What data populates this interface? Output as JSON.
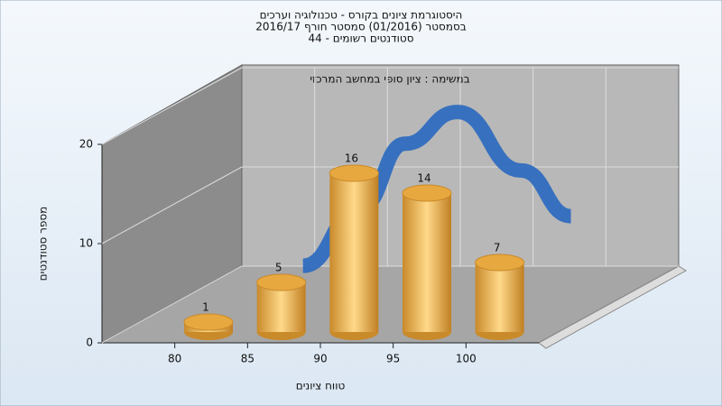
{
  "chart_data": {
    "type": "histogram",
    "title": [
      "היסטוגרמת ציונים בקורס - טכנולוגיה וערכים",
      "בסמסטר  (01/2016)  סמסטר חורף 2016/17",
      "סטודנטים רשומים - 44"
    ],
    "annotation": "במשימה : ציון סופי במחשב המרכזי",
    "xlabel": "טווח ציונים",
    "ylabel": "מספר סטודנטים",
    "bins": [
      80,
      85,
      90,
      95,
      100,
      105
    ],
    "values": [
      1,
      5,
      16,
      14,
      7
    ],
    "color": "#e8a840",
    "xlim": [
      75,
      105
    ],
    "xticks": [
      80,
      85,
      90,
      95,
      100
    ],
    "ylim": [
      0,
      20
    ],
    "yticks": [
      0,
      10,
      20
    ],
    "grid": true,
    "curve": {
      "color": "#2f6bbf",
      "x": [
        84,
        88,
        91,
        94.6,
        99,
        102.4
      ],
      "values": [
        3.9,
        9.8,
        16.2,
        19.4,
        13.5,
        8.9
      ]
    }
  }
}
